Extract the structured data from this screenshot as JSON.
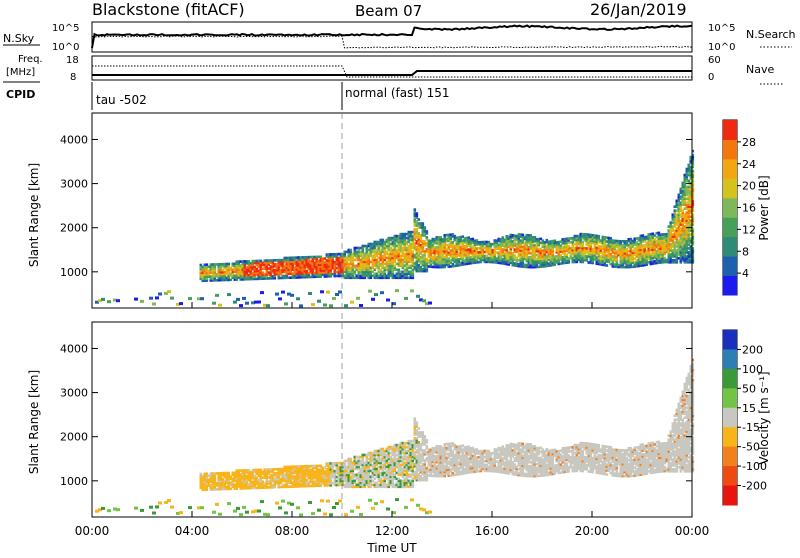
{
  "header": {
    "station": "Blackstone (fitACF)",
    "beam": "Beam 07",
    "date": "26/Jan/2019"
  },
  "labels": {
    "nsky": "N.Sky",
    "nsearch": "N.Search",
    "freq_1": "Freq.",
    "freq_2": "[MHz]",
    "cpid": "CPID",
    "nave": "Nave",
    "tick_1e5": "10^5",
    "tick_1e0": "10^0",
    "tick_18": "18",
    "tick_8": "8",
    "tick_60": "60",
    "tick_0": "0"
  },
  "cpid_segments": [
    {
      "text": "tau -502",
      "start_hour": 0
    },
    {
      "text": "normal (fast) 151",
      "start_hour": 10
    }
  ],
  "colors": {
    "power_scale": [
      "#1b1bf0",
      "#1e5fb0",
      "#2f8a76",
      "#47a05a",
      "#7fb85a",
      "#d6c21c",
      "#f2a712",
      "#f4760f",
      "#ef2a10"
    ],
    "velocity_scale": [
      "#1b2fbf",
      "#2b7fb2",
      "#3a9a3a",
      "#72c544",
      "#c8c8c0",
      "#f8b418",
      "#f2801c",
      "#ee4a12",
      "#e8140e"
    ]
  },
  "chart_data": [
    {
      "type": "heatmap",
      "panel": "power",
      "xlabel": "",
      "ylabel": "Slant Range [km]",
      "xlim": [
        0,
        24
      ],
      "ylim": [
        180,
        4600
      ],
      "yticks": [
        1000,
        2000,
        3000,
        4000
      ],
      "colorbar": {
        "label": "Power [dB]",
        "ticks": [
          4,
          8,
          12,
          16,
          20,
          24,
          28
        ],
        "range": [
          0,
          32
        ]
      },
      "grid": false
    },
    {
      "type": "heatmap",
      "panel": "velocity",
      "xlabel": "Time UT",
      "ylabel": "Slant Range [km]",
      "xlim": [
        0,
        24
      ],
      "ylim": [
        180,
        4600
      ],
      "xticks": [
        "00:00",
        "04:00",
        "08:00",
        "12:00",
        "16:00",
        "20:00",
        "00:00"
      ],
      "yticks": [
        1000,
        2000,
        3000,
        4000
      ],
      "colorbar": {
        "label": "Velocity [m s⁻¹]",
        "ticks": [
          200,
          100,
          50,
          15,
          -15,
          -50,
          -100,
          -200
        ]
      },
      "grid": false
    }
  ]
}
